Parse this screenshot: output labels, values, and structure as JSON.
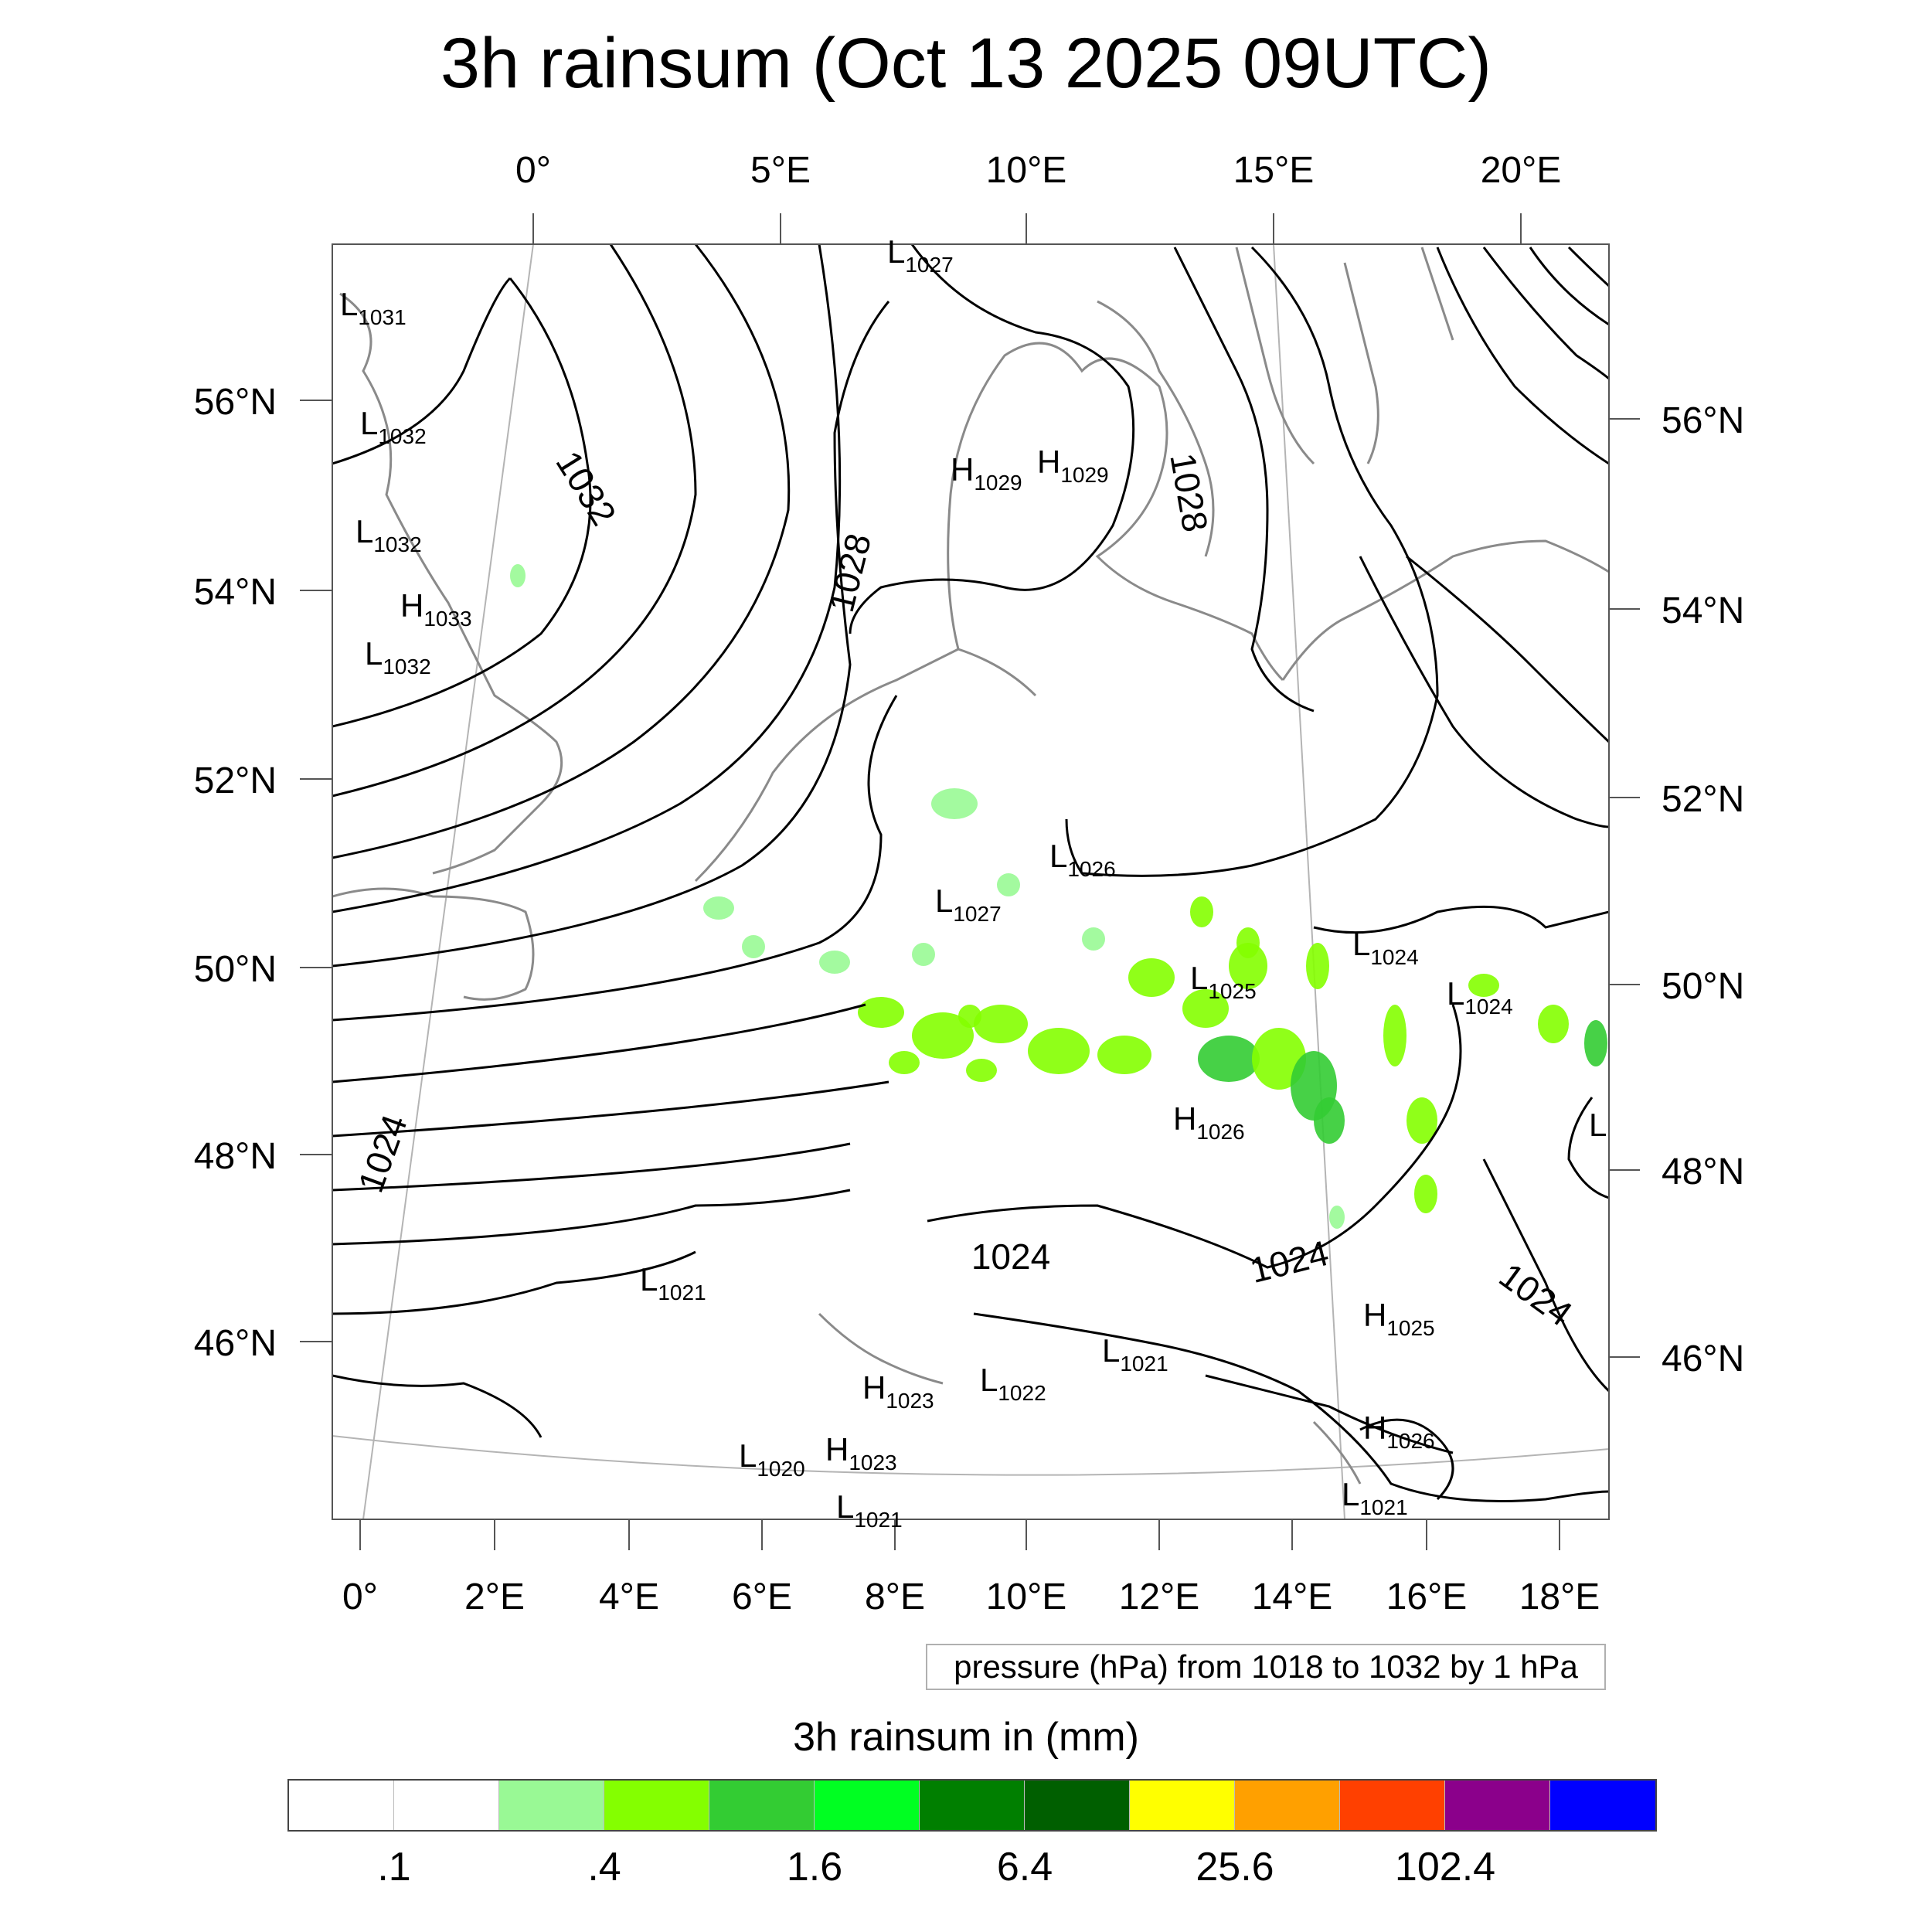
{
  "title": "3h rainsum (Oct 13 2025 09UTC)",
  "top_lon_labels": [
    "0°",
    "5°E",
    "10°E",
    "15°E",
    "20°E"
  ],
  "bottom_lon_labels": [
    "0°",
    "2°E",
    "4°E",
    "6°E",
    "8°E",
    "10°E",
    "12°E",
    "14°E",
    "16°E",
    "18°E"
  ],
  "left_lat_labels": [
    "56°N",
    "54°N",
    "52°N",
    "50°N",
    "48°N",
    "46°N"
  ],
  "right_lat_labels": [
    "56°N",
    "54°N",
    "52°N",
    "50°N",
    "48°N",
    "46°N"
  ],
  "isobar_labels": [
    {
      "text": "1032",
      "key": "iso_1032"
    },
    {
      "text": "1028",
      "key": "iso_1028_a"
    },
    {
      "text": "1028",
      "key": "iso_1028_b"
    },
    {
      "text": "1024",
      "key": "iso_1024_a"
    },
    {
      "text": "1024",
      "key": "iso_1024_b"
    },
    {
      "text": "1024",
      "key": "iso_1024_c"
    },
    {
      "text": "1024",
      "key": "iso_1024_d"
    }
  ],
  "pressure_centers": [
    {
      "type": "L",
      "value": "1027"
    },
    {
      "type": "L",
      "value": "1031"
    },
    {
      "type": "L",
      "value": "1032"
    },
    {
      "type": "L",
      "value": "1032"
    },
    {
      "type": "H",
      "value": "1033"
    },
    {
      "type": "L",
      "value": "1032"
    },
    {
      "type": "H",
      "value": "1029"
    },
    {
      "type": "H",
      "value": "1029"
    },
    {
      "type": "L",
      "value": "1026"
    },
    {
      "type": "L",
      "value": "1027"
    },
    {
      "type": "L",
      "value": "1025"
    },
    {
      "type": "L",
      "value": "1024"
    },
    {
      "type": "L",
      "value": "1024"
    },
    {
      "type": "H",
      "value": "1026"
    },
    {
      "type": "L",
      "value": ""
    },
    {
      "type": "L",
      "value": "1021"
    },
    {
      "type": "H",
      "value": "1025"
    },
    {
      "type": "L",
      "value": "1021"
    },
    {
      "type": "L",
      "value": "1022"
    },
    {
      "type": "H",
      "value": "1023"
    },
    {
      "type": "H",
      "value": "1026"
    },
    {
      "type": "L",
      "value": "1020"
    },
    {
      "type": "H",
      "value": "1023"
    },
    {
      "type": "L",
      "value": "1021"
    },
    {
      "type": "L",
      "value": "1021"
    }
  ],
  "pressure_note": "pressure (hPa) from 1018 to 1032 by 1 hPa",
  "legend": {
    "title": "3h rainsum in (mm)",
    "colors": [
      "#ffffff",
      "#ffffff",
      "#99f995",
      "#84ff00",
      "#33cc33",
      "#00ff22",
      "#007f00",
      "#005f00",
      "#ffff00",
      "#ffa000",
      "#ff4000",
      "#8b008b",
      "#0000ff"
    ],
    "tick_labels": [
      ".1",
      ".4",
      "1.6",
      "6.4",
      "25.6",
      "102.4"
    ]
  },
  "colors": {
    "isobar": "#000000",
    "coastline": "#8a8a8a",
    "graticule": "#b4b4b4",
    "rain_light": "#99f995",
    "rain_mid": "#84ff00",
    "rain_heavy": "#33cc33"
  }
}
